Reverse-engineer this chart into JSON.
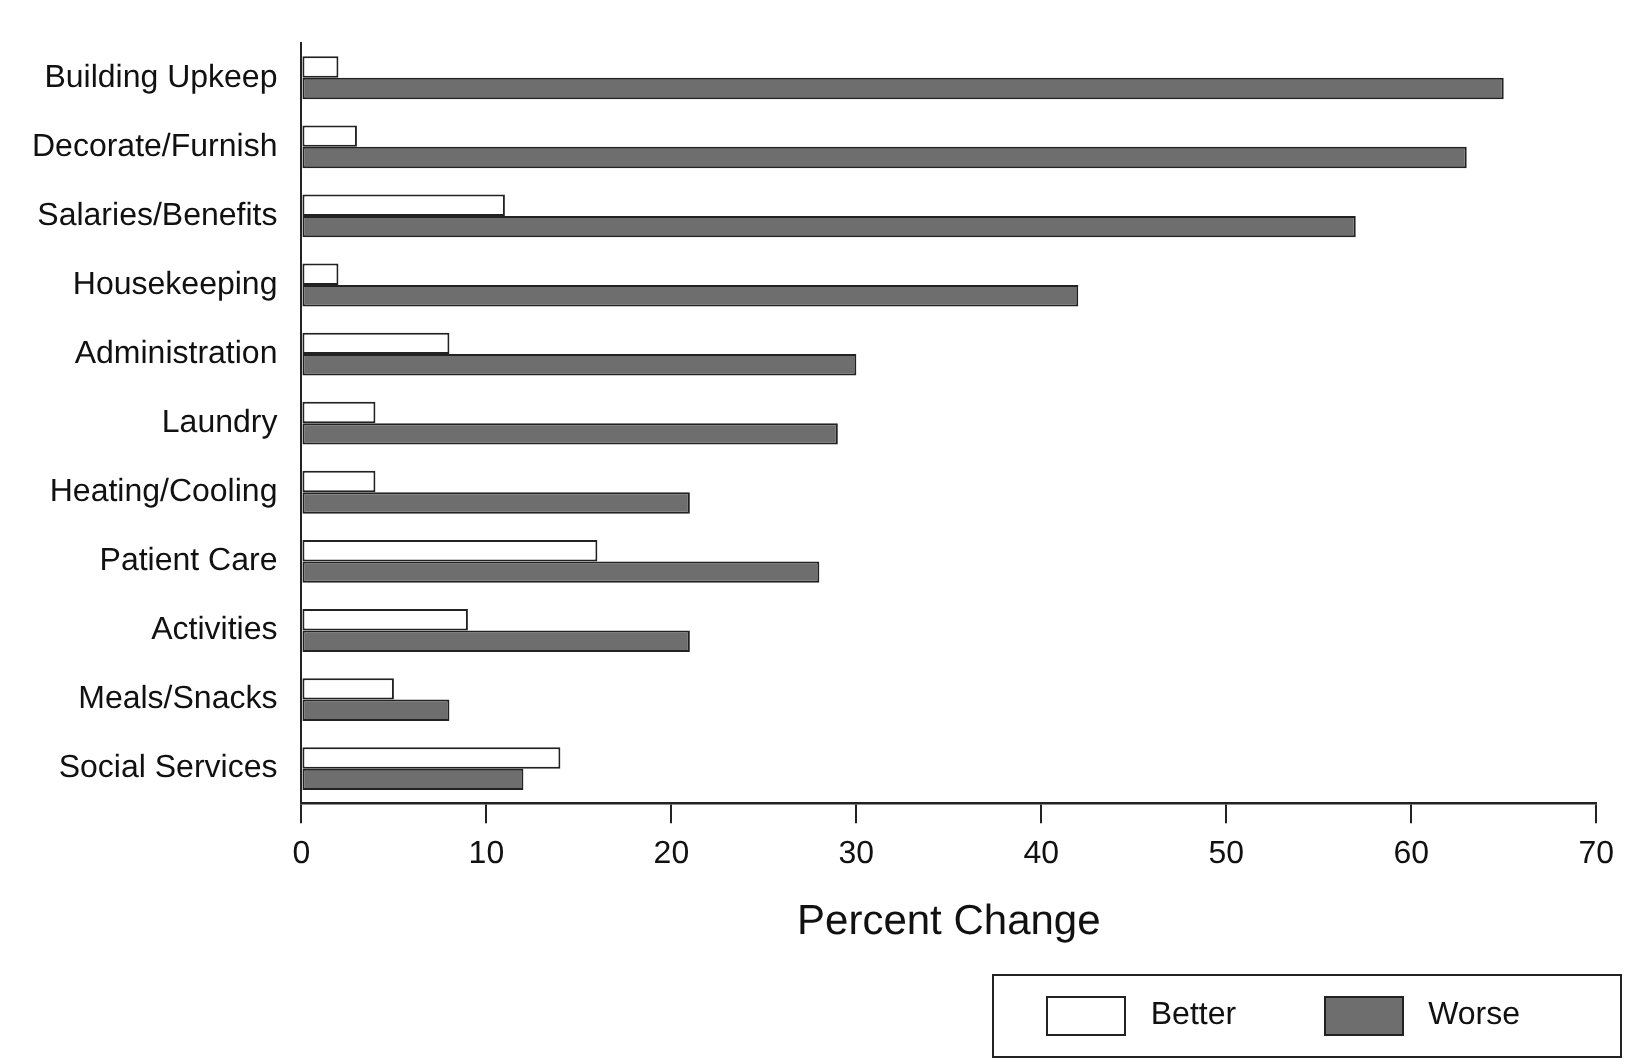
{
  "chart_data": {
    "type": "bar",
    "orientation": "horizontal",
    "xlabel": "Percent Change",
    "categories": [
      "Building Upkeep",
      "Decorate/Furnish",
      "Salaries/Benefits",
      "Housekeeping",
      "Administration",
      "Laundry",
      "Heating/Cooling",
      "Patient Care",
      "Activities",
      "Meals/Snacks",
      "Social Services"
    ],
    "series": [
      {
        "name": "Better",
        "color": "#ffffff",
        "values": [
          2,
          3,
          11,
          2,
          8,
          4,
          4,
          16,
          9,
          5,
          14
        ]
      },
      {
        "name": "Worse",
        "color": "#6e6e6e",
        "values": [
          65,
          63,
          57,
          42,
          30,
          29,
          21,
          28,
          21,
          8,
          12
        ]
      }
    ],
    "xlim": [
      0,
      70
    ],
    "xticks": [
      0,
      10,
      20,
      30,
      40,
      50,
      60,
      70
    ],
    "grid": false,
    "legend": "bottom right"
  }
}
